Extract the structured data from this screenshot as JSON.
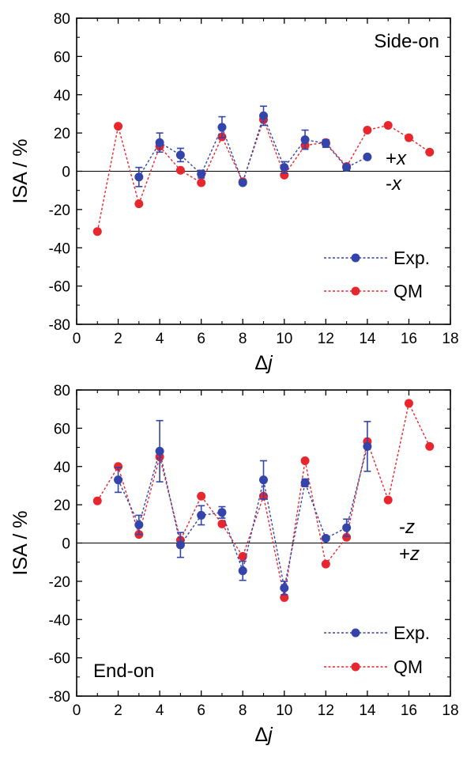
{
  "chart_data": [
    {
      "type": "scatter",
      "annotation": "Side-on",
      "direction_labels": [
        "+x",
        "-x"
      ],
      "xlabel": "Δj",
      "ylabel": "ISA / %",
      "xlim": [
        0,
        18
      ],
      "ylim": [
        -80,
        80
      ],
      "xticks": [
        0,
        2,
        4,
        6,
        8,
        10,
        12,
        14,
        16,
        18
      ],
      "yticks": [
        -80,
        -60,
        -40,
        -20,
        0,
        20,
        40,
        60,
        80
      ],
      "zero_line": true,
      "legend_position": "bottom-right",
      "series": [
        {
          "name": "Exp.",
          "color": "#3344aa",
          "x": [
            3,
            4,
            5,
            6,
            7,
            8,
            9,
            10,
            11,
            12,
            13,
            14
          ],
          "y": [
            -3,
            15,
            8.5,
            -1.5,
            23,
            -6,
            29,
            2,
            16.5,
            14.5,
            2,
            7.5
          ],
          "err": [
            5,
            5,
            3.5,
            2,
            5.5,
            1,
            5,
            3,
            5,
            2,
            1.5,
            0
          ]
        },
        {
          "name": "QM",
          "color": "#e8262d",
          "x": [
            1,
            2,
            3,
            4,
            5,
            6,
            7,
            8,
            9,
            10,
            11,
            12,
            13,
            14,
            15,
            16,
            17
          ],
          "y": [
            -31.5,
            23.5,
            -17,
            13,
            0.5,
            -6,
            18,
            -5.5,
            27,
            -2,
            13.5,
            15,
            2.5,
            21.5,
            24,
            17.5,
            10
          ]
        }
      ]
    },
    {
      "type": "scatter",
      "annotation": "End-on",
      "direction_labels": [
        "-z",
        "+z"
      ],
      "xlabel": "Δj",
      "ylabel": "ISA / %",
      "xlim": [
        0,
        18
      ],
      "ylim": [
        -80,
        80
      ],
      "xticks": [
        0,
        2,
        4,
        6,
        8,
        10,
        12,
        14,
        16,
        18
      ],
      "yticks": [
        -80,
        -60,
        -40,
        -20,
        0,
        20,
        40,
        60,
        80
      ],
      "zero_line": true,
      "legend_position": "bottom-right",
      "series": [
        {
          "name": "Exp.",
          "color": "#3344aa",
          "x": [
            2,
            3,
            4,
            5,
            6,
            7,
            8,
            9,
            10,
            11,
            12,
            13,
            14
          ],
          "y": [
            33,
            9.5,
            48,
            -1,
            14.5,
            16,
            -14.5,
            33,
            -23.5,
            31.5,
            2.5,
            8,
            50.5
          ],
          "err": [
            6.5,
            5,
            16,
            6.5,
            5,
            3,
            5,
            10,
            3.5,
            2,
            1,
            4.5,
            13
          ]
        },
        {
          "name": "QM",
          "color": "#e8262d",
          "x": [
            1,
            2,
            3,
            4,
            5,
            6,
            7,
            8,
            9,
            10,
            11,
            12,
            13,
            14,
            15,
            16,
            17
          ],
          "y": [
            22,
            40,
            4.5,
            45,
            1.5,
            24.5,
            10,
            -7,
            24.5,
            -28.5,
            43,
            -11,
            3,
            53,
            22.5,
            73,
            50.5
          ]
        }
      ]
    }
  ]
}
